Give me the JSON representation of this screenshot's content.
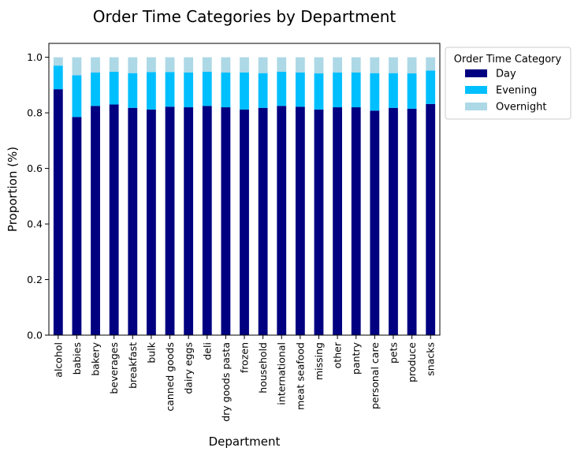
{
  "chart_data": {
    "type": "bar",
    "stacked": true,
    "title": "Order Time Categories by Department",
    "xlabel": "Department",
    "ylabel": "Proportion (%)",
    "ylim": [
      0,
      1.05
    ],
    "yticks": [
      "0.0",
      "0.2",
      "0.4",
      "0.6",
      "0.8",
      "1.0"
    ],
    "categories": [
      "alcohol",
      "babies",
      "bakery",
      "beverages",
      "breakfast",
      "bulk",
      "canned goods",
      "dairy eggs",
      "deli",
      "dry goods pasta",
      "frozen",
      "household",
      "international",
      "meat seafood",
      "missing",
      "other",
      "pantry",
      "personal care",
      "pets",
      "produce",
      "snacks"
    ],
    "series": [
      {
        "name": "Day",
        "color": "#000080",
        "values": [
          0.885,
          0.785,
          0.825,
          0.83,
          0.818,
          0.812,
          0.822,
          0.82,
          0.825,
          0.82,
          0.812,
          0.818,
          0.825,
          0.822,
          0.812,
          0.82,
          0.82,
          0.808,
          0.818,
          0.815,
          0.832
        ]
      },
      {
        "name": "Evening",
        "color": "#00BFFF",
        "values": [
          0.085,
          0.15,
          0.12,
          0.118,
          0.125,
          0.135,
          0.125,
          0.125,
          0.123,
          0.125,
          0.133,
          0.125,
          0.123,
          0.123,
          0.13,
          0.125,
          0.125,
          0.135,
          0.125,
          0.127,
          0.12
        ]
      },
      {
        "name": "Overnight",
        "color": "#ADD8E6",
        "values": [
          0.03,
          0.065,
          0.055,
          0.052,
          0.057,
          0.053,
          0.053,
          0.055,
          0.052,
          0.055,
          0.055,
          0.057,
          0.052,
          0.055,
          0.058,
          0.055,
          0.055,
          0.057,
          0.057,
          0.058,
          0.048
        ]
      }
    ],
    "grid": false,
    "legend": {
      "title": "Order Time Category",
      "placement": "outside-top-right"
    }
  }
}
